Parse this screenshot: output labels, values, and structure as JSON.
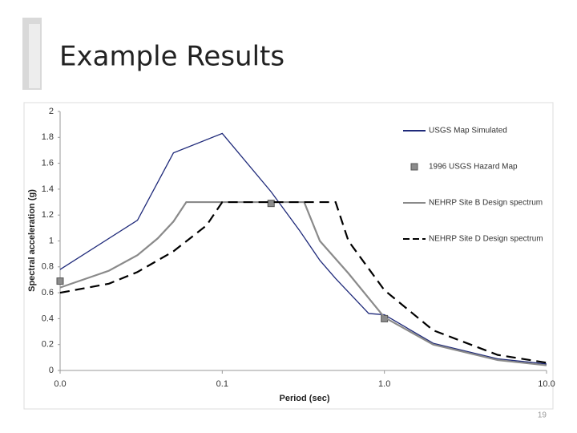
{
  "slide": {
    "title": "Example Results",
    "page_number": "19"
  },
  "chart_data": {
    "type": "line",
    "x_label": "Period (sec)",
    "y_label": "Spectral acceleration (g)",
    "xscale": "log",
    "xlim": [
      0.01,
      10
    ],
    "xticks": [
      {
        "value": 0.01,
        "label": "0.0"
      },
      {
        "value": 0.1,
        "label": "0.1"
      },
      {
        "value": 1,
        "label": "1.0"
      },
      {
        "value": 10,
        "label": "10.0"
      }
    ],
    "ylim": [
      0,
      2
    ],
    "yticks": [
      0,
      0.2,
      0.4,
      0.6,
      0.8,
      1,
      1.2,
      1.4,
      1.6,
      1.8,
      2
    ],
    "grid": false,
    "legend": "upper right",
    "series": [
      {
        "name": "USGS Map Simulated",
        "color": "#1f2a7a",
        "style": "solid",
        "x": [
          0.01,
          0.03,
          0.05,
          0.1,
          0.2,
          0.3,
          0.4,
          0.5,
          0.8,
          1,
          2,
          5,
          10
        ],
        "values": [
          0.78,
          1.16,
          1.68,
          1.83,
          1.38,
          1.08,
          0.85,
          0.71,
          0.44,
          0.43,
          0.21,
          0.09,
          0.05
        ]
      },
      {
        "name": "1996 USGS Hazard Map",
        "color": "#8c8c8c",
        "style": "marker",
        "x": [
          0.01,
          0.2,
          1
        ],
        "values": [
          0.69,
          1.29,
          0.4
        ]
      },
      {
        "name": "NEHRP Site B Design spectrum",
        "color": "#8a8a8a",
        "style": "solid",
        "x": [
          0.01,
          0.02,
          0.03,
          0.04,
          0.05,
          0.06,
          0.32,
          0.4,
          0.6,
          1,
          2,
          5,
          10
        ],
        "values": [
          0.64,
          0.77,
          0.89,
          1.02,
          1.15,
          1.3,
          1.3,
          1.0,
          0.75,
          0.41,
          0.2,
          0.08,
          0.04
        ]
      },
      {
        "name": "NEHRP Site D Design spectrum",
        "color": "#000000",
        "style": "dashed",
        "x": [
          0.01,
          0.02,
          0.03,
          0.05,
          0.08,
          0.1,
          0.5,
          0.6,
          1,
          2,
          5,
          10
        ],
        "values": [
          0.6,
          0.67,
          0.76,
          0.92,
          1.12,
          1.3,
          1.3,
          1.0,
          0.62,
          0.31,
          0.12,
          0.06
        ]
      }
    ]
  }
}
